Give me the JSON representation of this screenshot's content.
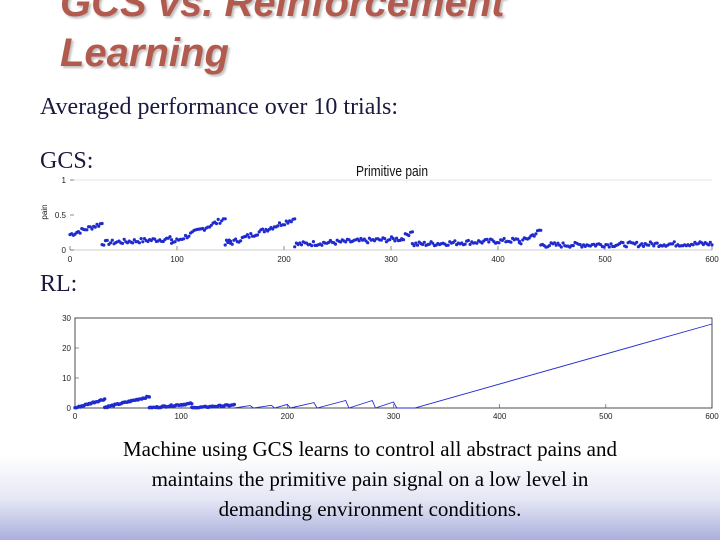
{
  "slide": {
    "title_line1": "GCS vs. Reinforcement",
    "title_line2": "Learning",
    "subtitle": "Averaged performance over 10 trials:",
    "gcs_label": "GCS:",
    "rl_label": "RL:",
    "caption_line1": "Machine using GCS learns to control all abstract pains and",
    "caption_line2": "maintains the primitive pain signal on a low level in",
    "caption_line3": "demanding environment conditions."
  },
  "colors": {
    "series": "#1f2bd0",
    "title": "#b35a4e"
  },
  "chart_data": [
    {
      "type": "scatter",
      "title": "Primitive pain",
      "ylabel": "pain",
      "xlim": [
        0,
        600
      ],
      "ylim": [
        0,
        1
      ],
      "xticks": [
        "0",
        "100",
        "200",
        "300",
        "400",
        "500",
        "600"
      ],
      "yticks": [
        "0",
        "0.5",
        "1"
      ],
      "series": [
        {
          "segments": [
            {
              "x": [
                0,
                30
              ],
              "y": [
                0.22,
                0.38
              ]
            },
            {
              "x": [
                30,
                95
              ],
              "y": [
                0.1,
                0.16
              ]
            },
            {
              "x": [
                95,
                145
              ],
              "y": [
                0.1,
                0.45
              ]
            },
            {
              "x": [
                145,
                150
              ],
              "y": [
                0.1,
                0.12
              ]
            },
            {
              "x": [
                150,
                210
              ],
              "y": [
                0.1,
                0.45
              ]
            },
            {
              "x": [
                210,
                310
              ],
              "y": [
                0.08,
                0.16
              ]
            },
            {
              "x": [
                310,
                320
              ],
              "y": [
                0.16,
                0.28
              ]
            },
            {
              "x": [
                320,
                420
              ],
              "y": [
                0.08,
                0.14
              ]
            },
            {
              "x": [
                420,
                440
              ],
              "y": [
                0.1,
                0.28
              ]
            },
            {
              "x": [
                440,
                600
              ],
              "y": [
                0.07,
                0.09
              ]
            }
          ]
        }
      ]
    },
    {
      "type": "line",
      "xlim": [
        0,
        600
      ],
      "ylim": [
        0,
        30
      ],
      "xticks": [
        "0",
        "100",
        "200",
        "300",
        "400",
        "500",
        "600"
      ],
      "yticks": [
        "0",
        "10",
        "20",
        "30"
      ],
      "series": [
        {
          "marked_segments": [
            {
              "x": [
                0,
                28
              ],
              "y": [
                0,
                3
              ]
            },
            {
              "x": [
                28,
                70
              ],
              "y": [
                0.2,
                3.8
              ]
            },
            {
              "x": [
                70,
                110
              ],
              "y": [
                0,
                1.5
              ]
            },
            {
              "x": [
                110,
                150
              ],
              "y": [
                0,
                1
              ]
            }
          ],
          "line_points": [
            [
              150,
              0
            ],
            [
              165,
              0.8
            ],
            [
              168,
              0
            ],
            [
              185,
              0.9
            ],
            [
              188,
              0
            ],
            [
              200,
              1.2
            ],
            [
              203,
              0
            ],
            [
              225,
              1.8
            ],
            [
              228,
              0
            ],
            [
              255,
              2.5
            ],
            [
              258,
              0
            ],
            [
              280,
              2.5
            ],
            [
              283,
              0
            ],
            [
              300,
              2.0
            ],
            [
              303,
              0
            ],
            [
              320,
              0
            ],
            [
              600,
              28
            ]
          ]
        }
      ]
    }
  ]
}
